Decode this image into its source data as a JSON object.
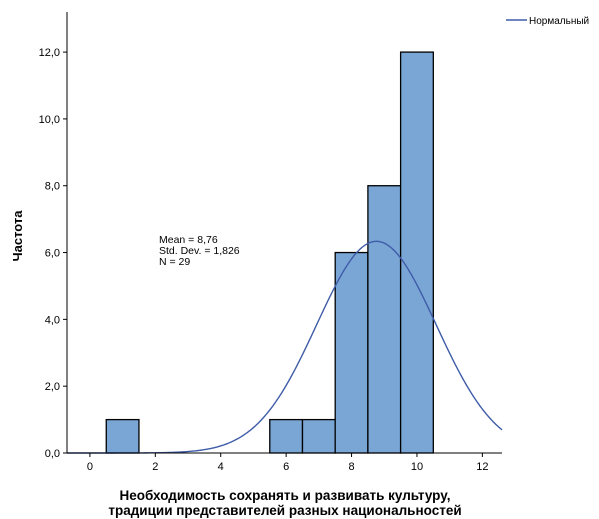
{
  "chart_data": {
    "type": "bar",
    "subtype": "histogram",
    "bins": [
      {
        "x0": 0.5,
        "x1": 1.5,
        "count": 1
      },
      {
        "x0": 5.5,
        "x1": 6.5,
        "count": 1
      },
      {
        "x0": 6.5,
        "x1": 7.5,
        "count": 1
      },
      {
        "x0": 7.5,
        "x1": 8.5,
        "count": 6
      },
      {
        "x0": 8.5,
        "x1": 9.5,
        "count": 8
      },
      {
        "x0": 9.5,
        "x1": 10.5,
        "count": 12
      }
    ],
    "normal_curve": {
      "name": "Нормальный",
      "mean": 8.76,
      "std_dev": 1.826,
      "n": 29,
      "bin_width": 1
    },
    "stats_text": [
      "Mean = 8,76",
      "Std. Dev. = 1,826",
      "N = 29"
    ],
    "xlabel": [
      "Необходимость сохранять и развивать культуру,",
      "традиции представителей разных национальностей"
    ],
    "ylabel": "Частота",
    "xlim": [
      -0.7,
      12.6
    ],
    "ylim": [
      0,
      13.2
    ],
    "x_ticks": [
      0,
      2,
      4,
      6,
      8,
      10,
      12
    ],
    "x_tick_labels": [
      "0",
      "2",
      "4",
      "6",
      "8",
      "10",
      "12"
    ],
    "y_ticks": [
      0,
      2,
      4,
      6,
      8,
      10,
      12
    ],
    "y_tick_labels": [
      "0,0",
      "2,0",
      "4,0",
      "6,0",
      "8,0",
      "10,0",
      "12,0"
    ],
    "legend": {
      "position": "top-right",
      "entries": [
        "Нормальный"
      ]
    },
    "grid": false,
    "colors": {
      "bar_fill": "#7aa6d6",
      "bar_stroke": "#000000",
      "curve": "#3f5ca8",
      "axis": "#000000"
    }
  }
}
